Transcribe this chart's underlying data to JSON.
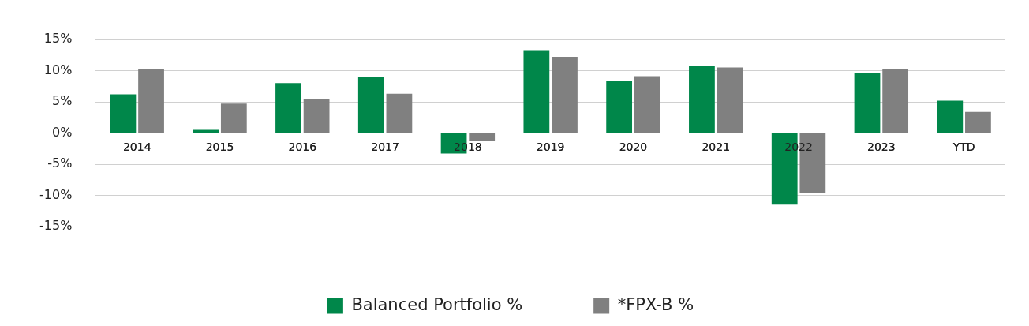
{
  "chart_data": {
    "type": "bar",
    "categories": [
      "2014",
      "2015",
      "2016",
      "2017",
      "2018",
      "2019",
      "2020",
      "2021",
      "2022",
      "2023",
      "YTD"
    ],
    "series": [
      {
        "name": "Balanced Portfolio %",
        "color": "#00874a",
        "values": [
          6.2,
          0.5,
          8.0,
          9.0,
          -3.3,
          13.3,
          8.4,
          10.7,
          -11.5,
          9.6,
          5.2
        ]
      },
      {
        "name": "*FPX-B %",
        "color": "#808080",
        "values": [
          10.2,
          4.7,
          5.4,
          6.3,
          -1.3,
          12.2,
          9.1,
          10.5,
          -9.6,
          10.2,
          3.4
        ]
      }
    ],
    "ylim": [
      -15,
      15
    ],
    "yticks": [
      {
        "value": -15,
        "label": "-15%"
      },
      {
        "value": -10,
        "label": "-10%"
      },
      {
        "value": -5,
        "label": "-5%"
      },
      {
        "value": 0,
        "label": "0%"
      },
      {
        "value": 5,
        "label": "5%"
      },
      {
        "value": 10,
        "label": "10%"
      },
      {
        "value": 15,
        "label": "15%"
      }
    ],
    "grid": "y",
    "legend": "bottom"
  }
}
